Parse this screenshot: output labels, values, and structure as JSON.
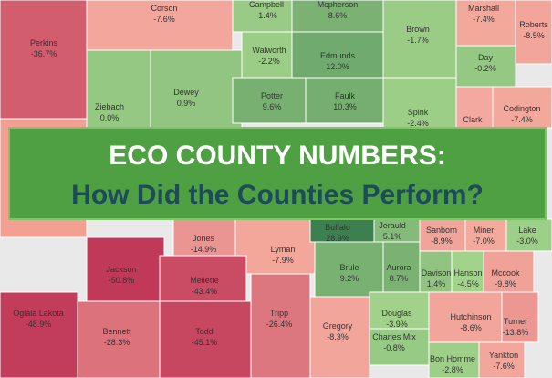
{
  "map": {
    "banner": {
      "title": "ECO COUNTY NUMBERS:",
      "subtitle": "How Did the Counties Perform?"
    },
    "counties": [
      {
        "name": "Corson",
        "value": -7.6,
        "value_label": "-7.6%"
      },
      {
        "name": "Campbell",
        "value": -1.4,
        "value_label": "-1.4%"
      },
      {
        "name": "Mcpherson",
        "value": 8.6,
        "value_label": "8.6%"
      },
      {
        "name": "Brown",
        "value": -1.7,
        "value_label": "-1.7%"
      },
      {
        "name": "Marshall",
        "value": -7.4,
        "value_label": "-7.4%"
      },
      {
        "name": "Roberts",
        "value": -8.5,
        "value_label": "-8.5%"
      },
      {
        "name": "Perkins",
        "value": -36.7,
        "value_label": "-36.7%"
      },
      {
        "name": "Walworth",
        "value": -2.2,
        "value_label": "-2.2%"
      },
      {
        "name": "Edmunds",
        "value": 12.0,
        "value_label": "12.0%"
      },
      {
        "name": "Day",
        "value": -0.2,
        "value_label": "-0.2%"
      },
      {
        "name": "Ziebach",
        "value": 0.0,
        "value_label": "0.0%"
      },
      {
        "name": "Dewey",
        "value": 0.9,
        "value_label": "0.9%"
      },
      {
        "name": "Potter",
        "value": 9.6,
        "value_label": "9.6%"
      },
      {
        "name": "Faulk",
        "value": 10.3,
        "value_label": "10.3%"
      },
      {
        "name": "Spink",
        "value": -2.4,
        "value_label": "-2.4%"
      },
      {
        "name": "Codington",
        "value": -7.4,
        "value_label": "-7.4%"
      },
      {
        "name": "Clark"
      },
      {
        "name": "Jones",
        "value": -14.9,
        "value_label": "-14.9%"
      },
      {
        "name": "Lyman",
        "value": -7.9,
        "value_label": "-7.9%"
      },
      {
        "name": "Buffalo",
        "value": 28.9,
        "value_label": "28.9%"
      },
      {
        "name": "Jerauld",
        "value": 5.1,
        "value_label": "5.1%"
      },
      {
        "name": "Sanborn",
        "value": -8.9,
        "value_label": "-8.9%"
      },
      {
        "name": "Miner",
        "value": -7.0,
        "value_label": "-7.0%"
      },
      {
        "name": "Lake",
        "value": -3.0,
        "value_label": "-3.0%"
      },
      {
        "name": "Jackson",
        "value": -50.8,
        "value_label": "-50.8%"
      },
      {
        "name": "Mellette",
        "value": -43.4,
        "value_label": "-43.4%"
      },
      {
        "name": "Brule",
        "value": 9.2,
        "value_label": "9.2%"
      },
      {
        "name": "Aurora",
        "value": 8.7,
        "value_label": "8.7%"
      },
      {
        "name": "Davison",
        "value": 1.4,
        "value_label": "1.4%"
      },
      {
        "name": "Hanson",
        "value": -4.5,
        "value_label": "-4.5%"
      },
      {
        "name": "Mccook",
        "value": -9.8,
        "value_label": "-9.8%"
      },
      {
        "name": "Oglala Lakota",
        "value": -48.9,
        "value_label": "-48.9%"
      },
      {
        "name": "Bennett",
        "value": -28.3,
        "value_label": "-28.3%"
      },
      {
        "name": "Todd",
        "value": -45.1,
        "value_label": "-45.1%"
      },
      {
        "name": "Tripp",
        "value": -26.4,
        "value_label": "-26.4%"
      },
      {
        "name": "Gregory",
        "value": -8.3,
        "value_label": "-8.3%"
      },
      {
        "name": "Douglas",
        "value": -3.9,
        "value_label": "-3.9%"
      },
      {
        "name": "Charles Mix",
        "value": -0.8,
        "value_label": "-0.8%"
      },
      {
        "name": "Hutchinson",
        "value": -8.6,
        "value_label": "-8.6%"
      },
      {
        "name": "Turner",
        "value": -13.8,
        "value_label": "-13.8%"
      },
      {
        "name": "Bon Homme",
        "value": -2.8,
        "value_label": "-2.8%"
      },
      {
        "name": "Yankton",
        "value": -7.6,
        "value_label": "-7.6%"
      }
    ]
  }
}
